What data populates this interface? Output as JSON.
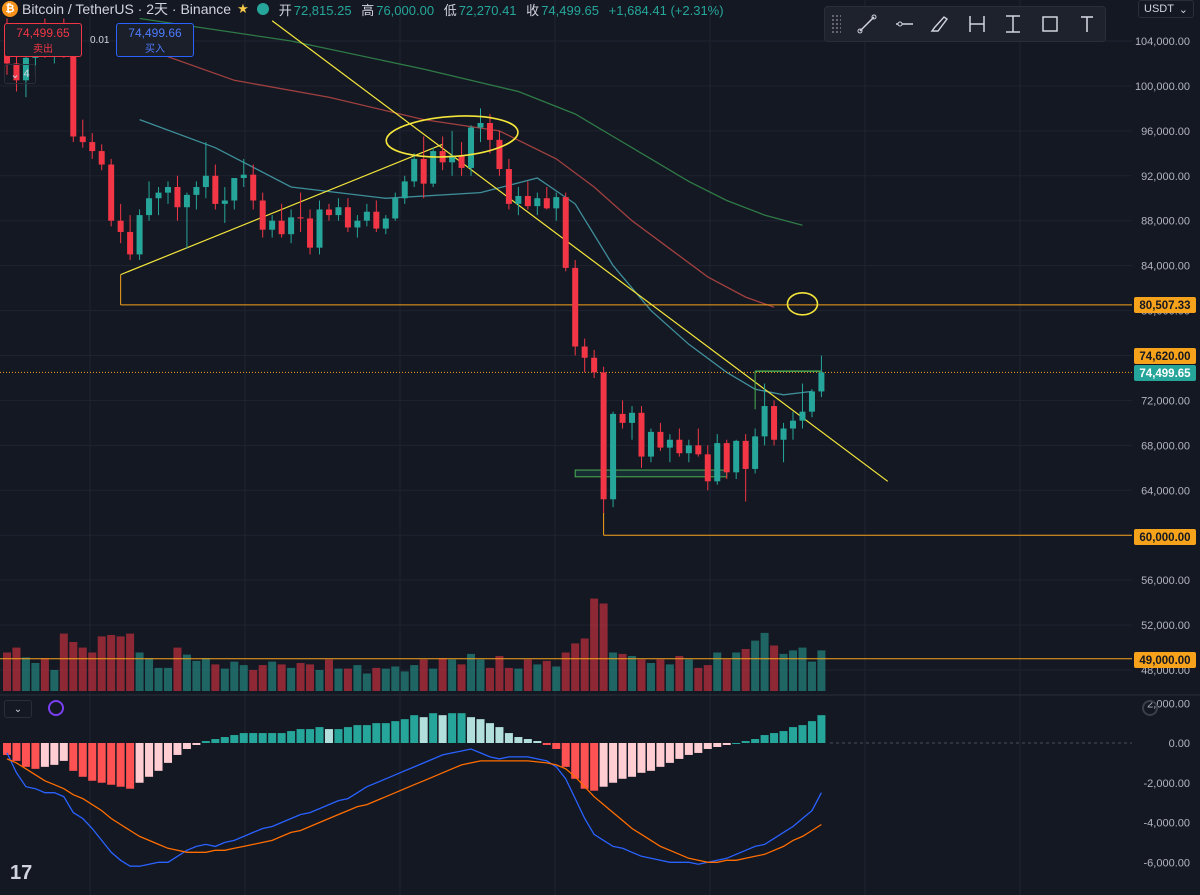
{
  "header": {
    "coin_glyph": "₿",
    "symbol": "Bitcoin / TetherUS · 2天 · Binance",
    "ohlc": [
      {
        "label": "开",
        "value": "72,815.25"
      },
      {
        "label": "高",
        "value": "76,000.00"
      },
      {
        "label": "低",
        "value": "72,270.41"
      },
      {
        "label": "收",
        "value": "74,499.65"
      }
    ],
    "change": "+1,684.41 (+2.31%)"
  },
  "trade": {
    "sell_price": "74,499.65",
    "sell_label": "卖出",
    "spread": "0.01",
    "buy_price": "74,499.66",
    "buy_label": "买入"
  },
  "collapse_count": "4",
  "quote_currency": "USDT",
  "toolbar": [
    "trend-line-icon",
    "horizontal-line-icon",
    "brush-icon",
    "date-range-icon",
    "price-range-icon",
    "rectangle-icon",
    "text-icon"
  ],
  "price_axis": [
    "104,000.00",
    "100,000.00",
    "96,000.00",
    "92,000.00",
    "88,000.00",
    "84,000.00",
    "80,000.00",
    "76,000.00",
    "72,000.00",
    "68,000.00",
    "64,000.00",
    "60,000.00",
    "56,000.00",
    "52,000.00",
    "48,000.00"
  ],
  "price_tags": [
    {
      "value": "80,507.33",
      "color": "#f7a21b"
    },
    {
      "value": "74,620.00",
      "color": "#f7a21b"
    },
    {
      "value": "74,499.65",
      "color": "#26a69a"
    },
    {
      "value": "60,000.00",
      "color": "#f7a21b"
    },
    {
      "value": "49,000.00",
      "color": "#f7a21b"
    }
  ],
  "macd_axis": [
    "2,000.00",
    "0.00",
    "-2,000.00",
    "-4,000.00",
    "-6,000.00"
  ],
  "colors": {
    "up": "#26a69a",
    "down": "#f23645",
    "annotation": "#f5e63b",
    "level": "#f7a21b",
    "macd_line": "#2962ff",
    "signal_line": "#ff6d00"
  },
  "chart_data": [
    {
      "type": "candlestick",
      "quote": "USDT",
      "ylim": [
        46000,
        106000
      ],
      "candles": [
        [
          104000,
          106000,
          101000,
          102000
        ],
        [
          102000,
          104500,
          99500,
          100500
        ],
        [
          100500,
          103500,
          99000,
          102500
        ],
        [
          102500,
          105500,
          101000,
          104500
        ],
        [
          104500,
          106000,
          102500,
          103500
        ],
        [
          103500,
          105500,
          102000,
          104000
        ],
        [
          104000,
          106000,
          102500,
          102800
        ],
        [
          102800,
          103500,
          95000,
          95500
        ],
        [
          95500,
          97000,
          94500,
          95000
        ],
        [
          95000,
          95800,
          93500,
          94200
        ],
        [
          94200,
          94800,
          92500,
          93000
        ],
        [
          93000,
          93500,
          87500,
          88000
        ],
        [
          88000,
          89500,
          86000,
          87000
        ],
        [
          87000,
          88500,
          84500,
          85000
        ],
        [
          85000,
          89000,
          84500,
          88500
        ],
        [
          88500,
          91500,
          88000,
          90000
        ],
        [
          90000,
          91000,
          88500,
          90500
        ],
        [
          90500,
          91500,
          89500,
          91000
        ],
        [
          91000,
          92000,
          88000,
          89200
        ],
        [
          89200,
          90500,
          85500,
          90300
        ],
        [
          90300,
          91500,
          89000,
          91000
        ],
        [
          91000,
          95000,
          90000,
          92000
        ],
        [
          92000,
          93000,
          89000,
          89500
        ],
        [
          89500,
          91000,
          87800,
          89800
        ],
        [
          89800,
          91500,
          89000,
          91800
        ],
        [
          91800,
          93500,
          91000,
          92100
        ],
        [
          92100,
          93000,
          89000,
          89800
        ],
        [
          89800,
          90500,
          86500,
          87200
        ],
        [
          87200,
          88500,
          86500,
          88000
        ],
        [
          88000,
          89500,
          86500,
          86800
        ],
        [
          86800,
          89000,
          86000,
          88300
        ],
        [
          88300,
          90500,
          87000,
          88200
        ],
        [
          88200,
          89000,
          85000,
          85600
        ],
        [
          85600,
          89800,
          85000,
          89000
        ],
        [
          89000,
          89500,
          88000,
          88500
        ],
        [
          88500,
          90000,
          88000,
          89200
        ],
        [
          89200,
          90000,
          87000,
          87400
        ],
        [
          87400,
          88500,
          86500,
          88000
        ],
        [
          88000,
          89500,
          87500,
          88800
        ],
        [
          88800,
          89800,
          87000,
          87300
        ],
        [
          87300,
          88500,
          86800,
          88200
        ],
        [
          88200,
          90500,
          88000,
          90000
        ],
        [
          90000,
          92000,
          89500,
          91500
        ],
        [
          91500,
          94000,
          91000,
          93500
        ],
        [
          93500,
          95500,
          90000,
          91300
        ],
        [
          91300,
          94500,
          91000,
          94200
        ],
        [
          94200,
          95500,
          92500,
          93200
        ],
        [
          93200,
          96000,
          92000,
          93800
        ],
        [
          93800,
          95000,
          92000,
          92700
        ],
        [
          92700,
          96500,
          92000,
          96300
        ],
        [
          96300,
          98000,
          95000,
          96700
        ],
        [
          96700,
          97500,
          94000,
          95200
        ],
        [
          95200,
          96000,
          92000,
          92600
        ],
        [
          92600,
          93500,
          89000,
          89500
        ],
        [
          89500,
          91000,
          88500,
          90200
        ],
        [
          90200,
          91500,
          89000,
          89300
        ],
        [
          89300,
          90500,
          88500,
          90000
        ],
        [
          90000,
          91000,
          89000,
          89100
        ],
        [
          89100,
          90500,
          88000,
          90100
        ],
        [
          90100,
          90500,
          83500,
          83800
        ],
        [
          83800,
          84500,
          76000,
          76800
        ],
        [
          76800,
          77500,
          74500,
          75800
        ],
        [
          75800,
          76500,
          74000,
          74500
        ],
        [
          74500,
          75000,
          62000,
          63200
        ],
        [
          63200,
          71000,
          62500,
          70800
        ],
        [
          70800,
          72000,
          69500,
          70000
        ],
        [
          70000,
          71500,
          68500,
          70900
        ],
        [
          70900,
          71500,
          66000,
          67000
        ],
        [
          67000,
          69500,
          66500,
          69200
        ],
        [
          69200,
          70000,
          67500,
          67800
        ],
        [
          67800,
          69000,
          66500,
          68500
        ],
        [
          68500,
          69500,
          67000,
          67300
        ],
        [
          67300,
          68500,
          66500,
          68000
        ],
        [
          68000,
          69500,
          67000,
          67200
        ],
        [
          67200,
          68000,
          64000,
          64800
        ],
        [
          64800,
          69000,
          64500,
          68200
        ],
        [
          68200,
          68500,
          65000,
          65600
        ],
        [
          65600,
          68500,
          65000,
          68400
        ],
        [
          68400,
          69000,
          63000,
          65900
        ],
        [
          65900,
          69500,
          65500,
          68800
        ],
        [
          68800,
          73500,
          68000,
          71500
        ],
        [
          71500,
          72000,
          68000,
          68500
        ],
        [
          68500,
          70000,
          66500,
          69500
        ],
        [
          69500,
          71000,
          68500,
          70200
        ],
        [
          70200,
          73500,
          69500,
          71000
        ],
        [
          71000,
          73000,
          70500,
          72800
        ],
        [
          72800,
          76000,
          72300,
          74500
        ]
      ],
      "volume_relative": [
        0.55,
        0.62,
        0.48,
        0.4,
        0.47,
        0.3,
        0.82,
        0.7,
        0.62,
        0.55,
        0.78,
        0.8,
        0.78,
        0.82,
        0.55,
        0.47,
        0.33,
        0.33,
        0.62,
        0.52,
        0.43,
        0.47,
        0.38,
        0.32,
        0.42,
        0.37,
        0.3,
        0.37,
        0.42,
        0.38,
        0.33,
        0.4,
        0.38,
        0.3,
        0.45,
        0.32,
        0.32,
        0.37,
        0.25,
        0.33,
        0.32,
        0.35,
        0.28,
        0.37,
        0.45,
        0.32,
        0.47,
        0.45,
        0.38,
        0.53,
        0.45,
        0.33,
        0.5,
        0.33,
        0.32,
        0.45,
        0.38,
        0.43,
        0.35,
        0.55,
        0.68,
        0.75,
        1.32,
        1.25,
        0.55,
        0.53,
        0.5,
        0.45,
        0.4,
        0.45,
        0.38,
        0.5,
        0.45,
        0.33,
        0.37,
        0.55,
        0.45,
        0.55,
        0.6,
        0.72,
        0.83,
        0.65,
        0.53,
        0.58,
        0.62,
        0.42,
        0.58
      ],
      "moving_averages": [
        {
          "color": "#3e8f9a",
          "points": [
            [
              14,
              97000
            ],
            [
              22,
              94500
            ],
            [
              30,
              91000
            ],
            [
              40,
              90000
            ],
            [
              50,
              90500
            ],
            [
              56,
              91800
            ],
            [
              60,
              89500
            ],
            [
              64,
              84000
            ],
            [
              68,
              80000
            ],
            [
              72,
              77000
            ],
            [
              76,
              74500
            ],
            [
              79,
              73000
            ],
            [
              82,
              72500
            ],
            [
              85,
              72800
            ]
          ]
        },
        {
          "color": "#a0403f",
          "points": [
            [
              14,
              103500
            ],
            [
              24,
              100500
            ],
            [
              34,
              99000
            ],
            [
              44,
              97000
            ],
            [
              52,
              96000
            ],
            [
              58,
              93500
            ],
            [
              62,
              91000
            ],
            [
              66,
              88000
            ],
            [
              70,
              85500
            ],
            [
              74,
              83000
            ],
            [
              78,
              81200
            ],
            [
              81,
              80300
            ]
          ]
        },
        {
          "color": "#2f7a47",
          "points": [
            [
              14,
              106000
            ],
            [
              30,
              104000
            ],
            [
              44,
              101500
            ],
            [
              54,
              99500
            ],
            [
              60,
              97500
            ],
            [
              64,
              95500
            ],
            [
              68,
              93500
            ],
            [
              72,
              91500
            ],
            [
              76,
              89800
            ],
            [
              80,
              88500
            ],
            [
              84,
              87600
            ]
          ]
        }
      ],
      "annotations": {
        "upper_trendline": [
          [
            28,
            105800
          ],
          [
            93,
            64800
          ]
        ],
        "support_trendline": [
          [
            12,
            83200
          ],
          [
            46,
            94800
          ]
        ],
        "level_80507": {
          "from": 12,
          "value": 80507.33
        },
        "level_60000": {
          "from": 63,
          "value": 60000
        },
        "level_49000": {
          "from": 0,
          "value": 49000
        },
        "current_price": 74499.65,
        "high_74620": 74620,
        "range_box_bottom": [
          65200,
          65800,
          60,
          76
        ],
        "range_box_top": [
          74600,
          79,
          86
        ],
        "circles": [
          [
            47,
            95500
          ],
          [
            84,
            80600
          ]
        ]
      }
    },
    {
      "type": "histogram+line",
      "name": "MACD",
      "ylim": [
        -6800,
        2400
      ],
      "histogram": [
        -600,
        -900,
        -1200,
        -1300,
        -1200,
        -1100,
        -900,
        -1400,
        -1700,
        -1900,
        -2000,
        -2100,
        -2200,
        -2300,
        -2000,
        -1700,
        -1400,
        -1000,
        -600,
        -300,
        -100,
        100,
        200,
        300,
        400,
        500,
        500,
        500,
        500,
        500,
        600,
        700,
        700,
        800,
        700,
        700,
        800,
        900,
        900,
        1000,
        1000,
        1100,
        1200,
        1400,
        1300,
        1500,
        1400,
        1500,
        1500,
        1300,
        1200,
        1000,
        800,
        500,
        300,
        200,
        100,
        -100,
        -300,
        -1200,
        -1800,
        -2300,
        -2400,
        -2200,
        -2000,
        -1800,
        -1700,
        -1500,
        -1400,
        -1200,
        -1000,
        -800,
        -600,
        -500,
        -300,
        -200,
        -100,
        0,
        100,
        200,
        400,
        500,
        600,
        800,
        900,
        1100,
        1400
      ],
      "macd_line": [
        -500,
        -1500,
        -2200,
        -2300,
        -2500,
        -2500,
        -2700,
        -3500,
        -3800,
        -4300,
        -4900,
        -5500,
        -5900,
        -6200,
        -6200,
        -6100,
        -6000,
        -6000,
        -5700,
        -5400,
        -5200,
        -5100,
        -5200,
        -5000,
        -4900,
        -4700,
        -4500,
        -4300,
        -4200,
        -4000,
        -3800,
        -3600,
        -3500,
        -3300,
        -3100,
        -2900,
        -2800,
        -2500,
        -2200,
        -2000,
        -1800,
        -1600,
        -1400,
        -1200,
        -1000,
        -800,
        -600,
        -500,
        -400,
        -300,
        -500,
        -700,
        -800,
        -700,
        -700,
        -700,
        -800,
        -900,
        -1200,
        -1800,
        -2800,
        -3800,
        -4600,
        -4900,
        -5200,
        -5300,
        -5500,
        -5700,
        -5800,
        -5900,
        -6000,
        -6000,
        -6000,
        -6100,
        -6000,
        -5900,
        -5800,
        -5600,
        -5400,
        -5200,
        -5100,
        -4800,
        -4500,
        -4200,
        -3800,
        -3400,
        -2500
      ],
      "signal_line": [
        -800,
        -1000,
        -1300,
        -1600,
        -1900,
        -2100,
        -2300,
        -2600,
        -2800,
        -3100,
        -3400,
        -3800,
        -4100,
        -4400,
        -4700,
        -4900,
        -5100,
        -5300,
        -5400,
        -5500,
        -5500,
        -5500,
        -5400,
        -5400,
        -5300,
        -5200,
        -5100,
        -5000,
        -4900,
        -4700,
        -4500,
        -4400,
        -4200,
        -4000,
        -3800,
        -3600,
        -3400,
        -3200,
        -3100,
        -2900,
        -2700,
        -2500,
        -2300,
        -2100,
        -1900,
        -1700,
        -1500,
        -1300,
        -1100,
        -1000,
        -900,
        -900,
        -900,
        -900,
        -900,
        -900,
        -950,
        -1000,
        -1100,
        -1300,
        -1700,
        -2200,
        -2700,
        -3100,
        -3500,
        -3900,
        -4300,
        -4600,
        -4900,
        -5200,
        -5400,
        -5600,
        -5800,
        -5900,
        -6000,
        -6000,
        -5900,
        -5900,
        -5800,
        -5700,
        -5600,
        -5400,
        -5200,
        -4900,
        -4700,
        -4400,
        -4100
      ]
    }
  ]
}
